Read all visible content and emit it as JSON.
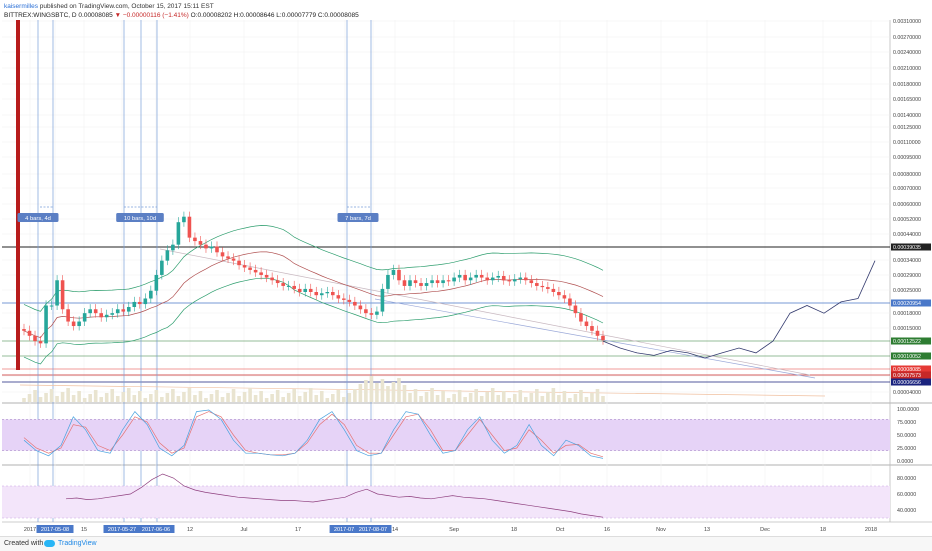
{
  "header": {
    "author": "kaisermilles",
    "published_text": "published on TradingView.com, October 15, 2017 15:11 EST"
  },
  "symbol": {
    "exchange_symbol": "BITTREX:WINGSBTC, D",
    "last": "0.00008085",
    "change": "−0.00000116 (−1.41%)",
    "ohlc": "O:0.00008202 H:0.00008646 L:0.00007779 C:0.00008085",
    "down_color": "#c62828"
  },
  "price_axis": {
    "ticks": [
      "0.00310000",
      "0.00270000",
      "0.00240000",
      "0.00210000",
      "0.00180000",
      "0.00165000",
      "0.00140000",
      "0.00125000",
      "0.00110000",
      "0.00095000",
      "0.00080000",
      "0.00070000",
      "0.00060000",
      "0.00052000",
      "0.00044000",
      "0.00034000",
      "0.00029000",
      "0.00025000",
      "0.00018000",
      "0.00015000",
      "0.00007000",
      "0.00004000"
    ],
    "labels": [
      {
        "text": "0.00039035",
        "bg": "#222222"
      },
      {
        "text": "0.00020954",
        "bg": "#4a78c9"
      },
      {
        "text": "0.00012522",
        "bg": "#2e7d32"
      },
      {
        "text": "0.00010052",
        "bg": "#2e7d32"
      },
      {
        "text": "0.00008085",
        "bg": "#e53935"
      },
      {
        "text": "0.00007573",
        "bg": "#c62828"
      },
      {
        "text": "0.00006656",
        "bg": "#1a237e"
      }
    ]
  },
  "stoch_axis": {
    "ticks": [
      "100.0000",
      "75.0000",
      "50.0000",
      "25.0000",
      "0.0000"
    ]
  },
  "rsi_axis": {
    "ticks": [
      "80.0000",
      "60.0000",
      "40.0000"
    ]
  },
  "date_axis": {
    "labels": [
      "2017",
      "2017-05-08",
      "15",
      "2017-05-27",
      "2017-06-06",
      "12",
      "Jul",
      "17",
      "2017-07-",
      "2017-08-07",
      "14",
      "Sep",
      "18",
      "Oct",
      "16",
      "Nov",
      "13",
      "Dec",
      "18",
      "2018"
    ]
  },
  "annotations": [
    {
      "text": "4 bars, 4d"
    },
    {
      "text": "10 bars, 10d"
    },
    {
      "text": "7 bars, 7d"
    }
  ],
  "colors": {
    "candle_up": "#26a69a",
    "candle_down": "#ef5350",
    "spike": "#b71c1c",
    "bollinger": "#2e9e6e",
    "ma": "#b05050",
    "range_line": "#7a9fd8",
    "stoch_k": "#4aa3df",
    "stoch_d": "#e57373",
    "stoch_band": "#e6d3f7",
    "rsi_line": "#8e3f7e",
    "rsi_band": "#f3e5fa",
    "projection": "#333a6e"
  },
  "footer": {
    "created": "Created with",
    "brand": "TradingView"
  },
  "chart_data": {
    "type": "candlestick",
    "title": "BITTREX:WINGSBTC, D",
    "interval": "D",
    "price_range": [
      4e-05,
      0.0031
    ],
    "log_scale": true,
    "x_range": [
      "2017-04-26",
      "2018-01-03"
    ],
    "price_series": {
      "name": "WINGSBTC",
      "note": "closing prices, approximate",
      "values": [
        9e-05,
        8.5e-05,
        8e-05,
        7.8e-05,
        0.00012,
        0.00012,
        0.00016,
        0.000115,
        0.0001,
        9.5e-05,
        0.0001,
        0.00011,
        0.000115,
        0.00011,
        0.000105,
        0.000108,
        0.00011,
        0.000115,
        0.000112,
        0.000118,
        0.000125,
        0.000122,
        0.00013,
        0.000142,
        0.00017,
        0.0002,
        0.000225,
        0.00024,
        0.00031,
        0.00033,
        0.00026,
        0.00025,
        0.00024,
        0.00023,
        0.000235,
        0.00022,
        0.00021,
        0.000205,
        0.0002,
        0.00019,
        0.000185,
        0.00018,
        0.000175,
        0.00017,
        0.000165,
        0.00016,
        0.000155,
        0.00015,
        0.00015,
        0.000145,
        0.00014,
        0.000145,
        0.00014,
        0.000135,
        0.000138,
        0.00014,
        0.000135,
        0.00013,
        0.000128,
        0.000125,
        0.00012,
        0.000115,
        0.00011,
        0.000108,
        0.000112,
        0.000145,
        0.00017,
        0.00018,
        0.00016,
        0.00015,
        0.00016,
        0.000155,
        0.00015,
        0.000155,
        0.00016,
        0.000155,
        0.00016,
        0.000158,
        0.000165,
        0.00017,
        0.00016,
        0.000165,
        0.00017,
        0.000165,
        0.00016,
        0.000165,
        0.000168,
        0.00016,
        0.000158,
        0.000162,
        0.000165,
        0.00016,
        0.000155,
        0.00015,
        0.000148,
        0.000145,
        0.00014,
        0.000135,
        0.00013,
        0.00012,
        0.00011,
        0.0001,
        9.5e-05,
        9e-05,
        8.5e-05,
        8.085e-05
      ]
    },
    "projection_series": {
      "values": [
        8e-05,
        7.4e-05,
        7e-05,
        6.8e-05,
        7.2e-05,
        7e-05,
        6.6e-05,
        7e-05,
        7.4e-05,
        7e-05,
        8e-05,
        0.00011,
        0.00012,
        0.00011,
        0.000125,
        0.00013,
        0.0002
      ]
    },
    "stochastic": {
      "range": [
        0,
        100
      ],
      "k": [
        40,
        20,
        10,
        30,
        85,
        60,
        20,
        15,
        60,
        95,
        70,
        25,
        10,
        30,
        95,
        98,
        80,
        40,
        15,
        15,
        12,
        10,
        15,
        40,
        80,
        95,
        60,
        20,
        10,
        15,
        60,
        95,
        90,
        50,
        15,
        20,
        60,
        85,
        40,
        15,
        30,
        70,
        30,
        10,
        40,
        30,
        10,
        5
      ],
      "d": [
        45,
        25,
        15,
        25,
        70,
        65,
        30,
        20,
        50,
        85,
        75,
        35,
        15,
        25,
        85,
        95,
        85,
        50,
        20,
        15,
        12,
        12,
        15,
        35,
        70,
        90,
        70,
        30,
        15,
        15,
        50,
        85,
        90,
        60,
        20,
        20,
        50,
        80,
        50,
        20,
        25,
        60,
        40,
        15,
        30,
        32,
        15,
        8
      ]
    },
    "rsi": {
      "range": [
        30,
        90
      ],
      "values": [
        54,
        55,
        53,
        54,
        56,
        58,
        60,
        68,
        78,
        85,
        80,
        70,
        65,
        62,
        60,
        58,
        56,
        55,
        54,
        53,
        52,
        52,
        51,
        50,
        52,
        54,
        56,
        62,
        66,
        60,
        58,
        56,
        57,
        55,
        54,
        56,
        58,
        56,
        55,
        54,
        52,
        50,
        48,
        46,
        44,
        42,
        40,
        38,
        35,
        33,
        31
      ]
    }
  }
}
